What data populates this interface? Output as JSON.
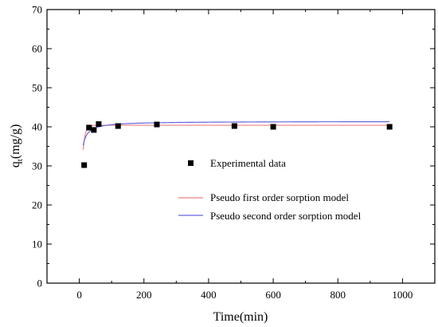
{
  "chart_data": {
    "type": "scatter",
    "xlabel": "Time(min)",
    "ylabel": {
      "main": "q",
      "sub": "t",
      "unit": "(mg/g)"
    },
    "xlim": [
      -100,
      1100
    ],
    "ylim": [
      0,
      70
    ],
    "xticks": [
      0,
      200,
      400,
      600,
      800,
      1000
    ],
    "yticks": [
      0,
      10,
      20,
      30,
      40,
      50,
      60,
      70
    ],
    "grid": false,
    "legend_position": "lower-center",
    "series": [
      {
        "name": "Experimental data",
        "kind": "scatter",
        "marker": "square",
        "color": "#000000",
        "x": [
          15,
          30,
          45,
          60,
          120,
          240,
          480,
          600,
          960
        ],
        "y": [
          30.2,
          39.8,
          39.2,
          40.7,
          40.2,
          40.6,
          40.2,
          40.0,
          40.0
        ]
      },
      {
        "name": "Pseudo first order sorption model",
        "kind": "line",
        "color": "#f08080",
        "model": "first_order",
        "qe": 40.4,
        "k": 0.155,
        "x_range": [
          12,
          960
        ]
      },
      {
        "name": "Pseudo second order sorption model",
        "kind": "line",
        "color": "#6666dd",
        "model": "second_order",
        "qe": 41.4,
        "k": 0.0115,
        "x_range": [
          12,
          960
        ]
      }
    ]
  }
}
